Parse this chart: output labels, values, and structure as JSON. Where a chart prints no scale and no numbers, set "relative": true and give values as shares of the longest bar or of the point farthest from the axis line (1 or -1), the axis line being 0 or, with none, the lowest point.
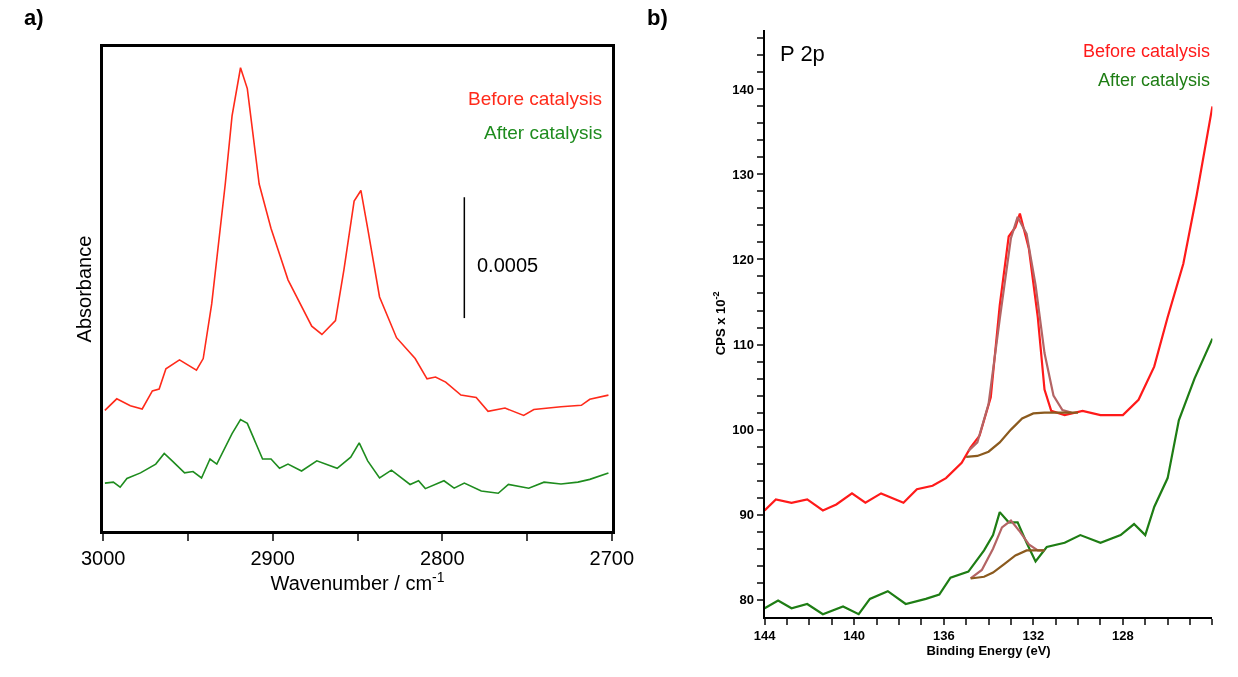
{
  "chart_data": [
    {
      "type": "line",
      "title": "a)",
      "xlabel": "Wavenumber / cm$^{-1}$",
      "ylabel": "Absorbance",
      "relative": true,
      "xlim": [
        3000,
        2700
      ],
      "xticks": [
        3000,
        {
          "value": 2950,
          "label": null
        },
        2900,
        {
          "value": 2850,
          "label": null
        },
        2800,
        {
          "value": 2750,
          "label": null
        },
        2700
      ],
      "tick_labels": "x",
      "annotations": [
        "0.0005"
      ],
      "series": [
        {
          "name": "Before catalysis",
          "color": "#ff2a1a",
          "x": [
            2999,
            2992,
            2984,
            2977,
            2971,
            2967,
            2963,
            2955,
            2945,
            2941,
            2936,
            2928,
            2924,
            2919,
            2915,
            2908,
            2901,
            2891,
            2877,
            2871,
            2863,
            2858,
            2852,
            2848,
            2844,
            2837,
            2827,
            2816,
            2809,
            2804,
            2798,
            2789,
            2780,
            2773,
            2763,
            2752,
            2746,
            2730,
            2718,
            2713,
            2702
          ],
          "values": [
            0.26,
            0.285,
            0.27,
            0.263,
            0.302,
            0.306,
            0.35,
            0.369,
            0.347,
            0.372,
            0.49,
            0.749,
            0.896,
            1,
            0.955,
            0.749,
            0.653,
            0.542,
            0.442,
            0.424,
            0.454,
            0.564,
            0.712,
            0.735,
            0.653,
            0.505,
            0.417,
            0.372,
            0.328,
            0.332,
            0.321,
            0.293,
            0.288,
            0.258,
            0.265,
            0.249,
            0.262,
            0.268,
            0.271,
            0.284,
            0.293
          ]
        },
        {
          "name": "After catalysis",
          "color": "#1e8c1e",
          "x": [
            2999,
            2994,
            2990,
            2986,
            2978,
            2969,
            2964,
            2959,
            2952,
            2947,
            2942,
            2937,
            2933,
            2924,
            2919,
            2915,
            2906,
            2901,
            2896,
            2891,
            2883,
            2874,
            2862,
            2854,
            2849,
            2844,
            2837,
            2830,
            2819,
            2814,
            2810,
            2799,
            2793,
            2787,
            2777,
            2767,
            2761,
            2749,
            2740,
            2730,
            2720,
            2713,
            2702
          ],
          "values": [
            0.103,
            0.105,
            0.094,
            0.113,
            0.125,
            0.144,
            0.167,
            0.15,
            0.125,
            0.128,
            0.114,
            0.155,
            0.144,
            0.21,
            0.24,
            0.232,
            0.155,
            0.155,
            0.135,
            0.144,
            0.129,
            0.151,
            0.135,
            0.159,
            0.19,
            0.151,
            0.114,
            0.131,
            0.1,
            0.108,
            0.091,
            0.108,
            0.092,
            0.103,
            0.086,
            0.081,
            0.1,
            0.092,
            0.105,
            0.101,
            0.105,
            0.111,
            0.125
          ]
        }
      ]
    },
    {
      "type": "line",
      "title": "b)",
      "xlabel": "Binding Energy (eV)",
      "ylabel": "CPS x 10$^{-2}$",
      "xlim": [
        144,
        124
      ],
      "ylim": [
        78,
        147
      ],
      "xticks": [
        144,
        {
          "value": 143,
          "label": null
        },
        {
          "value": 142,
          "label": null
        },
        {
          "value": 141,
          "label": null
        },
        140,
        {
          "value": 139,
          "label": null
        },
        {
          "value": 138,
          "label": null
        },
        {
          "value": 137,
          "label": null
        },
        136,
        {
          "value": 135,
          "label": null
        },
        {
          "value": 134,
          "label": null
        },
        {
          "value": 133,
          "label": null
        },
        132,
        {
          "value": 131,
          "label": null
        },
        {
          "value": 130,
          "label": null
        },
        {
          "value": 129,
          "label": null
        },
        128,
        {
          "value": 127,
          "label": null
        },
        {
          "value": 126,
          "label": null
        },
        {
          "value": 125,
          "label": null
        },
        {
          "value": 124,
          "label": null
        }
      ],
      "yticks": [
        80,
        {
          "value": 82,
          "label": null
        },
        {
          "value": 84,
          "label": null
        },
        {
          "value": 86,
          "label": null
        },
        {
          "value": 88,
          "label": null
        },
        90,
        {
          "value": 92,
          "label": null
        },
        {
          "value": 94,
          "label": null
        },
        {
          "value": 96,
          "label": null
        },
        {
          "value": 98,
          "label": null
        },
        100,
        {
          "value": 102,
          "label": null
        },
        {
          "value": 104,
          "label": null
        },
        {
          "value": 106,
          "label": null
        },
        {
          "value": 108,
          "label": null
        },
        110,
        {
          "value": 112,
          "label": null
        },
        {
          "value": 114,
          "label": null
        },
        {
          "value": 116,
          "label": null
        },
        {
          "value": 118,
          "label": null
        },
        120,
        {
          "value": 122,
          "label": null
        },
        {
          "value": 124,
          "label": null
        },
        {
          "value": 126,
          "label": null
        },
        {
          "value": 128,
          "label": null
        },
        130,
        {
          "value": 132,
          "label": null
        },
        {
          "value": 134,
          "label": null
        },
        {
          "value": 136,
          "label": null
        },
        {
          "value": 138,
          "label": null
        },
        140,
        {
          "value": 142,
          "label": null
        },
        {
          "value": 144,
          "label": null
        },
        {
          "value": 146,
          "label": null
        }
      ],
      "annotations": [
        "P 2p"
      ],
      "series": [
        {
          "name": "Before catalysis",
          "color": "#ff1a1a",
          "x": [
            144,
            143.5,
            142.8,
            142.1,
            141.4,
            140.8,
            140.1,
            139.5,
            138.8,
            137.8,
            137.2,
            136.5,
            135.9,
            135.2,
            134.8,
            134.4,
            133.9,
            133.5,
            133.1,
            132.8,
            132.6,
            132.2,
            131.8,
            131.5,
            131.2,
            130.6,
            129.8,
            129.0,
            128.0,
            127.3,
            126.6,
            126.0,
            125.3,
            124.7,
            124.0
          ],
          "values": [
            90.5,
            91.8,
            91.4,
            91.8,
            90.5,
            91.2,
            92.5,
            91.4,
            92.5,
            91.4,
            93.0,
            93.4,
            94.3,
            96.1,
            97.9,
            99.3,
            103.8,
            114.6,
            122.7,
            123.8,
            125.4,
            121.3,
            113.2,
            104.7,
            102.2,
            101.7,
            102.2,
            101.7,
            101.7,
            103.5,
            107.4,
            113.2,
            119.5,
            127.6,
            138.0
          ]
        },
        {
          "name": "After catalysis",
          "color": "#1e7d14",
          "x": [
            144,
            143.4,
            142.8,
            142.1,
            141.4,
            140.5,
            139.8,
            139.3,
            138.5,
            137.7,
            136.8,
            136.2,
            135.7,
            134.9,
            134.2,
            133.8,
            133.5,
            133.1,
            132.7,
            132.3,
            131.9,
            131.4,
            130.6,
            129.9,
            129.0,
            128.1,
            127.5,
            127.0,
            126.6,
            126.0,
            125.5,
            124.8,
            124.0
          ],
          "values": [
            79.0,
            79.9,
            79.0,
            79.5,
            78.3,
            79.2,
            78.3,
            80.1,
            81.0,
            79.5,
            80.1,
            80.6,
            82.6,
            83.3,
            85.8,
            87.6,
            90.3,
            89.1,
            89.1,
            86.7,
            84.5,
            86.2,
            86.7,
            87.6,
            86.7,
            87.6,
            88.9,
            87.6,
            90.9,
            94.3,
            101.1,
            106.0,
            110.7
          ]
        },
        {
          "color": "#b46464",
          "x": [
            134.9,
            134.5,
            134.0,
            133.5,
            133.0,
            132.7,
            132.3,
            131.9,
            131.5,
            131.1,
            130.7,
            130.3
          ],
          "values": [
            97.5,
            98.5,
            103,
            113,
            122.5,
            125.0,
            123,
            117,
            109,
            104,
            102.3,
            102
          ]
        },
        {
          "color": "#8b5a1e",
          "x": [
            135.0,
            134.5,
            134.0,
            133.5,
            133.0,
            132.5,
            132.0,
            131.5,
            130.5,
            130.0
          ],
          "values": [
            96.8,
            96.9,
            97.4,
            98.5,
            100.0,
            101.3,
            101.9,
            102.0,
            102.0,
            102.0
          ]
        },
        {
          "color": "#b46464",
          "x": [
            134.8,
            134.3,
            133.8,
            133.4,
            133.0,
            132.6,
            132.2,
            131.8,
            131.5
          ],
          "values": [
            82.5,
            83.5,
            86,
            88.5,
            89.3,
            88.0,
            86.5,
            85.8,
            85.8
          ]
        },
        {
          "color": "#8b5a1e",
          "x": [
            134.8,
            134.2,
            133.8,
            133.3,
            132.8,
            132.3,
            131.8,
            131.5
          ],
          "values": [
            82.5,
            82.7,
            83.2,
            84.2,
            85.2,
            85.8,
            85.8,
            85.8
          ]
        }
      ]
    }
  ]
}
